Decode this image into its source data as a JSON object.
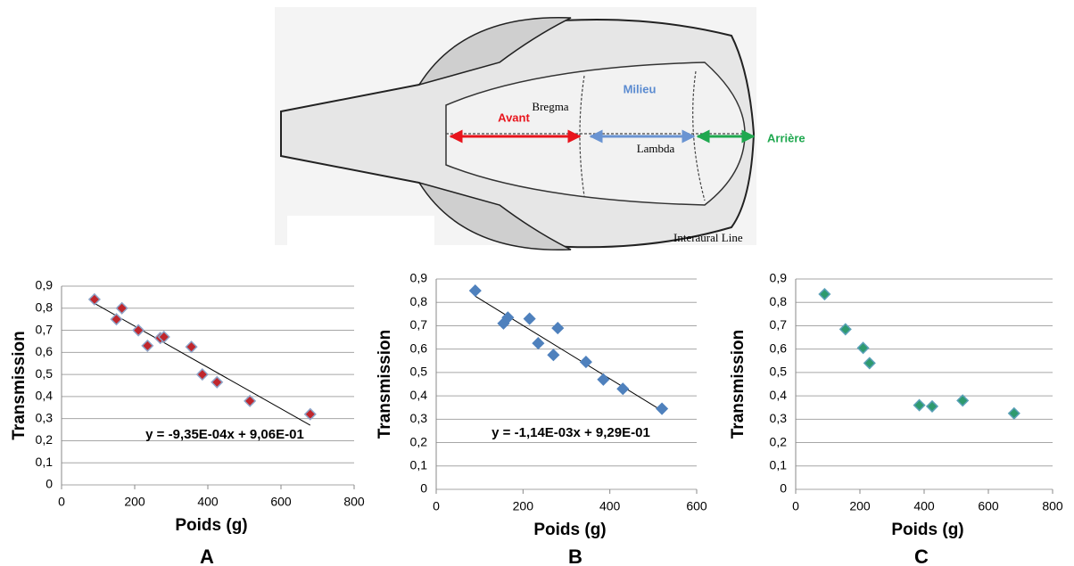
{
  "diagram": {
    "milieu": "Milieu",
    "bregma": "Bregma",
    "avant": "Avant",
    "lambda": "Lambda",
    "arriere": "Arrière",
    "interaural": "Interaural Line"
  },
  "chart_data": [
    {
      "type": "scatter",
      "panel": "A",
      "xlabel": "Poids (g)",
      "ylabel": "Transmission",
      "x": [
        90,
        150,
        165,
        210,
        235,
        270,
        280,
        355,
        385,
        425,
        515,
        680
      ],
      "y": [
        0.84,
        0.75,
        0.8,
        0.7,
        0.63,
        0.665,
        0.67,
        0.625,
        0.5,
        0.465,
        0.38,
        0.32
      ],
      "color": "#c0262c",
      "edge": "#8ea4c8",
      "xlim": [
        0,
        800
      ],
      "xticks": [
        0,
        200,
        400,
        600,
        800
      ],
      "ylim": [
        0,
        0.9
      ],
      "yticks": [
        0,
        {
          "value": 0.1,
          "label": "0,1"
        },
        {
          "value": 0.2,
          "label": "0,2"
        },
        {
          "value": 0.3,
          "label": "0,3"
        },
        {
          "value": 0.4,
          "label": "0,4"
        },
        {
          "value": 0.5,
          "label": "0,5"
        },
        {
          "value": 0.6,
          "label": "0,6"
        },
        {
          "value": 0.7,
          "label": "0,7"
        },
        {
          "value": 0.8,
          "label": "0,8"
        },
        {
          "value": 0.9,
          "label": "0,9"
        }
      ],
      "grid": true,
      "trendline": {
        "slope": -0.000935,
        "intercept": 0.906,
        "label": "y = -9,35E-04x + 9,06E-01"
      }
    },
    {
      "type": "scatter",
      "panel": "B",
      "xlabel": "Poids (g)",
      "ylabel": "Transmission",
      "x": [
        90,
        155,
        165,
        215,
        235,
        270,
        280,
        345,
        385,
        430,
        520
      ],
      "y": [
        0.85,
        0.71,
        0.735,
        0.73,
        0.625,
        0.575,
        0.69,
        0.545,
        0.47,
        0.43,
        0.345
      ],
      "color": "#4f81bd",
      "edge": "#4f81bd",
      "xlim": [
        0,
        600
      ],
      "xticks": [
        0,
        200,
        400,
        600
      ],
      "ylim": [
        0,
        0.9
      ],
      "yticks": [
        0,
        {
          "value": 0.1,
          "label": "0,1"
        },
        {
          "value": 0.2,
          "label": "0,2"
        },
        {
          "value": 0.3,
          "label": "0,3"
        },
        {
          "value": 0.4,
          "label": "0,4"
        },
        {
          "value": 0.5,
          "label": "0,5"
        },
        {
          "value": 0.6,
          "label": "0,6"
        },
        {
          "value": 0.7,
          "label": "0,7"
        },
        {
          "value": 0.8,
          "label": "0,8"
        },
        {
          "value": 0.9,
          "label": "0,9"
        }
      ],
      "grid": true,
      "trendline": {
        "slope": -0.00114,
        "intercept": 0.929,
        "label": "y = -1,14E-03x + 9,29E-01"
      }
    },
    {
      "type": "scatter",
      "panel": "C",
      "xlabel": "Poids (g)",
      "ylabel": "Transmission",
      "x": [
        90,
        155,
        210,
        230,
        385,
        425,
        520,
        680
      ],
      "y": [
        0.835,
        0.685,
        0.605,
        0.54,
        0.36,
        0.355,
        0.38,
        0.325
      ],
      "color": "#2e9a6e",
      "edge": "#5aa0b8",
      "xlim": [
        0,
        800
      ],
      "xticks": [
        0,
        200,
        400,
        600,
        800
      ],
      "ylim": [
        0,
        0.9
      ],
      "yticks": [
        0,
        {
          "value": 0.1,
          "label": "0,1"
        },
        {
          "value": 0.2,
          "label": "0,2"
        },
        {
          "value": 0.3,
          "label": "0,3"
        },
        {
          "value": 0.4,
          "label": "0,4"
        },
        {
          "value": 0.5,
          "label": "0,5"
        },
        {
          "value": 0.6,
          "label": "0,6"
        },
        {
          "value": 0.7,
          "label": "0,7"
        },
        {
          "value": 0.8,
          "label": "0,8"
        },
        {
          "value": 0.9,
          "label": "0,9"
        }
      ],
      "grid": true
    }
  ]
}
